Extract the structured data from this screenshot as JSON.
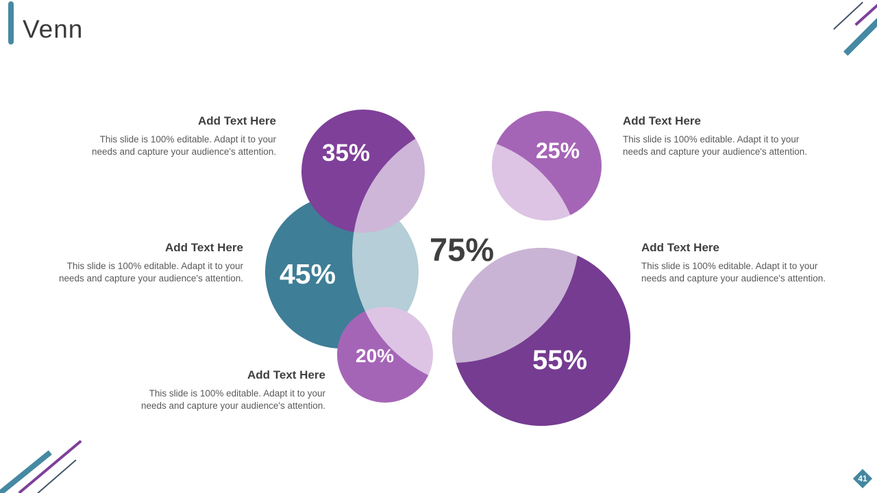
{
  "slide": {
    "title": "Venn",
    "page_number": "41"
  },
  "venn": {
    "type": "venn",
    "center_label": "75%",
    "circles": [
      {
        "name": "circle-35",
        "label": "35%",
        "color": "#7e4099"
      },
      {
        "name": "circle-45",
        "label": "45%",
        "color": "#3e7e96"
      },
      {
        "name": "circle-20",
        "label": "20%",
        "color": "#a565b7"
      },
      {
        "name": "circle-25",
        "label": "25%",
        "color": "#a565b7"
      },
      {
        "name": "circle-55",
        "label": "55%",
        "color": "#753c91"
      }
    ],
    "overlap_overlay_color": "rgba(255,255,255,0.62)"
  },
  "text_blocks": [
    {
      "heading": "Add Text Here",
      "body_line1": "This slide is 100% editable. Adapt it to your",
      "body_line2": "needs and capture your audience's attention."
    },
    {
      "heading": "Add Text Here",
      "body_line1": "This slide is 100% editable. Adapt it to your",
      "body_line2": "needs and capture your audience's attention."
    },
    {
      "heading": "Add Text Here",
      "body_line1": "This slide is 100% editable. Adapt it to your",
      "body_line2": "needs and capture your audience's attention."
    },
    {
      "heading": "Add Text Here",
      "body_line1": "This slide is 100% editable. Adapt it to your",
      "body_line2": "needs and capture your audience's attention."
    },
    {
      "heading": "Add Text Here",
      "body_line1": "This slide is 100% editable. Adapt it to your",
      "body_line2": "needs and capture your audience's attention."
    }
  ],
  "colors": {
    "accent_teal": "#4689a3",
    "accent_purple": "#7e4099",
    "decor_line_dark": "#44546b",
    "title_text": "#3a3a3a",
    "heading_text": "#3f3f3f",
    "body_text": "#595959",
    "center_label_text": "#3f3f3f",
    "badge_background": "#4486a0"
  }
}
